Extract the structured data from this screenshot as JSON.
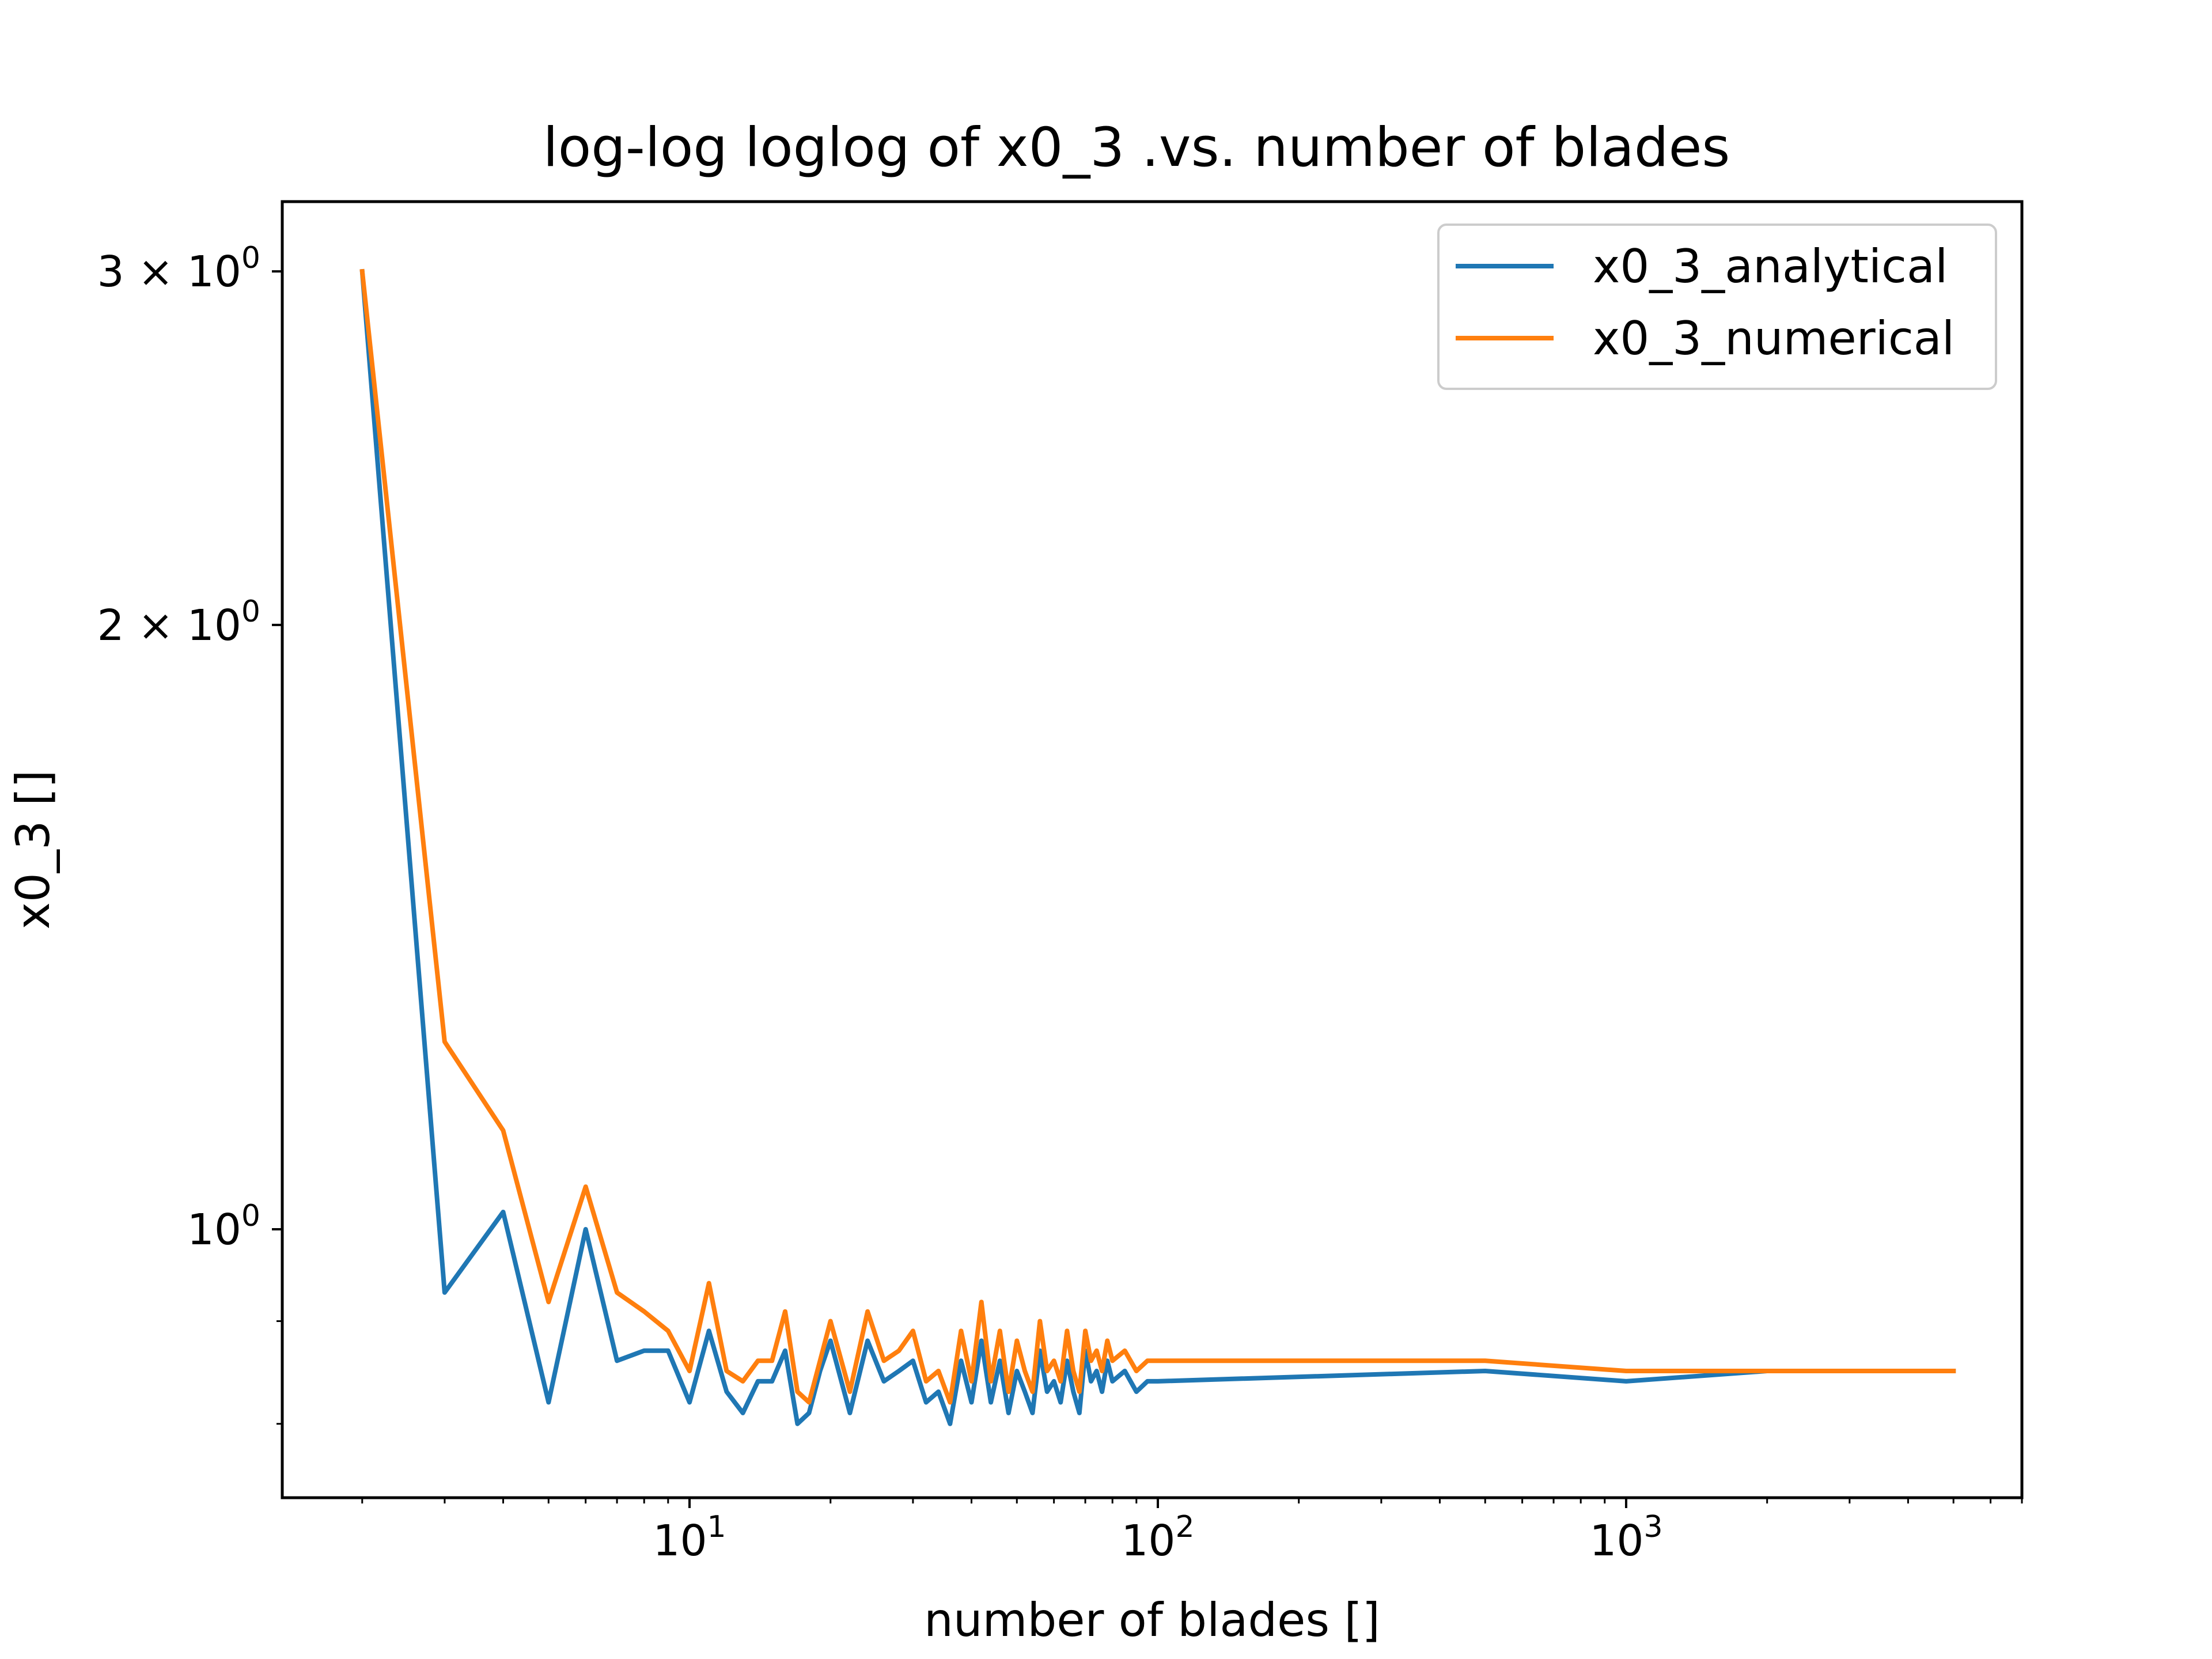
{
  "chart_data": {
    "type": "line",
    "title": "log-log loglog of x0_3 .vs. number of blades",
    "xlabel": "number of blades []",
    "ylabel": "x0_3 []",
    "xscale": "log",
    "yscale": "log",
    "xlim": [
      1.35,
      7000
    ],
    "ylim": [
      0.735,
      3.25
    ],
    "xticks": [
      {
        "value": 10,
        "base": "10",
        "exp": "1"
      },
      {
        "value": 100,
        "base": "10",
        "exp": "2"
      },
      {
        "value": 1000,
        "base": "10",
        "exp": "3"
      }
    ],
    "yticks": [
      {
        "value": 1,
        "base": "10",
        "exp": "0"
      },
      {
        "value": 2,
        "base": "2 × 10",
        "exp": "0"
      },
      {
        "value": 3,
        "base": "3 × 10",
        "exp": "0"
      }
    ],
    "legend_position": "top-right",
    "grid": false,
    "series": [
      {
        "name": "x0_3_analytical",
        "color": "#1f77b4",
        "x": [
          2,
          3,
          4,
          5,
          6,
          7,
          8,
          9,
          10,
          11,
          12,
          13,
          14,
          15,
          16,
          17,
          18,
          19,
          20,
          22,
          24,
          26,
          28,
          30,
          32,
          34,
          36,
          38,
          40,
          42,
          44,
          46,
          48,
          50,
          52,
          54,
          56,
          58,
          60,
          62,
          64,
          66,
          68,
          70,
          72,
          74,
          76,
          78,
          80,
          85,
          90,
          95,
          100,
          500,
          1000,
          2000,
          5000
        ],
        "y": [
          3.0,
          0.93,
          1.02,
          0.82,
          1.0,
          0.86,
          0.87,
          0.87,
          0.82,
          0.89,
          0.83,
          0.81,
          0.84,
          0.84,
          0.87,
          0.8,
          0.81,
          0.85,
          0.88,
          0.81,
          0.88,
          0.84,
          0.85,
          0.86,
          0.82,
          0.83,
          0.8,
          0.86,
          0.82,
          0.88,
          0.82,
          0.86,
          0.81,
          0.85,
          0.83,
          0.81,
          0.87,
          0.83,
          0.84,
          0.82,
          0.86,
          0.83,
          0.81,
          0.87,
          0.84,
          0.85,
          0.83,
          0.86,
          0.84,
          0.85,
          0.83,
          0.84,
          0.84,
          0.85,
          0.84,
          0.85,
          0.85
        ]
      },
      {
        "name": "x0_3_numerical",
        "color": "#ff7f0e",
        "x": [
          2,
          3,
          4,
          5,
          6,
          7,
          8,
          9,
          10,
          11,
          12,
          13,
          14,
          15,
          16,
          17,
          18,
          19,
          20,
          22,
          24,
          26,
          28,
          30,
          32,
          34,
          36,
          38,
          40,
          42,
          44,
          46,
          48,
          50,
          52,
          54,
          56,
          58,
          60,
          62,
          64,
          66,
          68,
          70,
          72,
          74,
          76,
          78,
          80,
          85,
          90,
          95,
          100,
          500,
          1000,
          2000,
          5000
        ],
        "y": [
          3.0,
          1.24,
          1.12,
          0.92,
          1.05,
          0.93,
          0.91,
          0.89,
          0.85,
          0.94,
          0.85,
          0.84,
          0.86,
          0.86,
          0.91,
          0.83,
          0.82,
          0.86,
          0.9,
          0.83,
          0.91,
          0.86,
          0.87,
          0.89,
          0.84,
          0.85,
          0.82,
          0.89,
          0.84,
          0.92,
          0.84,
          0.89,
          0.83,
          0.88,
          0.85,
          0.83,
          0.9,
          0.85,
          0.86,
          0.84,
          0.89,
          0.85,
          0.83,
          0.89,
          0.86,
          0.87,
          0.85,
          0.88,
          0.86,
          0.87,
          0.85,
          0.86,
          0.86,
          0.86,
          0.85,
          0.85,
          0.85
        ]
      }
    ]
  }
}
